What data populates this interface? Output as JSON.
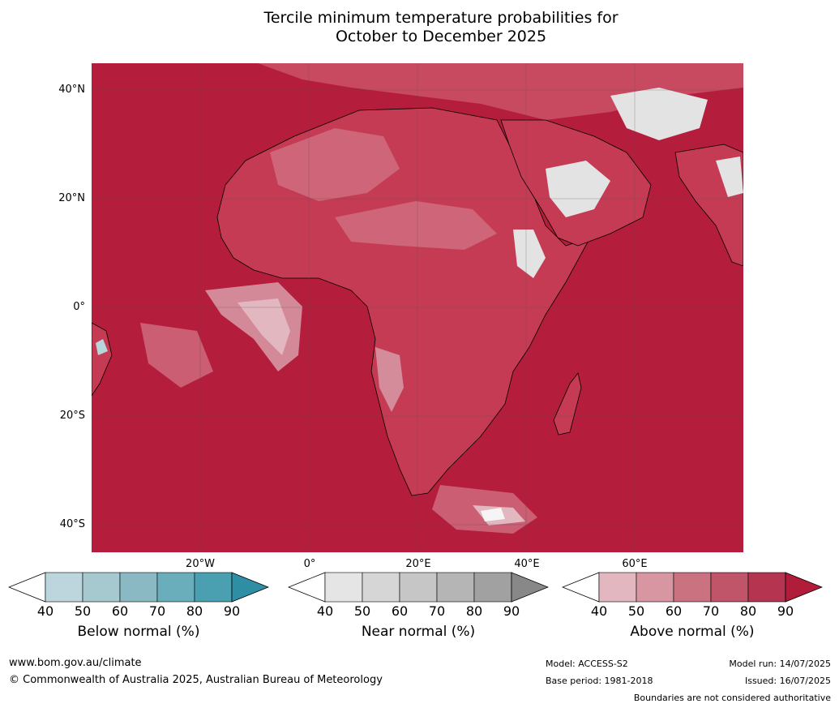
{
  "title": {
    "line1": "Tercile minimum temperature probabilities for",
    "line2": "October to December 2025"
  },
  "map": {
    "lat_labels": [
      "40°N",
      "20°N",
      "0°",
      "20°S",
      "40°S"
    ],
    "lon_labels": [
      "20°W",
      "0°",
      "20°E",
      "40°E",
      "60°E"
    ],
    "colors": {
      "ocean_base": "#b41d3c",
      "land_base": "#c43b53",
      "level_60": "#cf6a7c",
      "level_50": "#d796a2",
      "level_40": "#e2b7bf",
      "near_normal": "#e3e3e3",
      "below_normal": "#b9d5dc"
    }
  },
  "colorbars": [
    {
      "label": "Below normal (%)",
      "ticks": [
        "40",
        "50",
        "60",
        "70",
        "80",
        "90"
      ],
      "colors": [
        "#bdd6dd",
        "#a6c8cf",
        "#8ab9c4",
        "#6baebb",
        "#4a9fb0"
      ],
      "arrow_color": "#2e8fa4"
    },
    {
      "label": "Near normal (%)",
      "ticks": [
        "40",
        "50",
        "60",
        "70",
        "80",
        "90"
      ],
      "colors": [
        "#e5e5e5",
        "#d6d6d6",
        "#c6c6c6",
        "#b5b5b5",
        "#a1a1a1"
      ],
      "arrow_color": "#888888"
    },
    {
      "label": "Above normal (%)",
      "ticks": [
        "40",
        "50",
        "60",
        "70",
        "80",
        "90"
      ],
      "colors": [
        "#e2b7bf",
        "#d796a2",
        "#cb7280",
        "#c05468",
        "#b53450"
      ],
      "arrow_color": "#b11c3a"
    }
  ],
  "footer": {
    "url": "www.bom.gov.au/climate",
    "copyright": "© Commonwealth of Australia 2025, Australian Bureau of Meteorology",
    "model": "Model: ACCESS-S2",
    "base_period": "Base period: 1981-2018",
    "model_run": "Model run: 14/07/2025",
    "issued": "Issued: 16/07/2025",
    "disclaimer": "Boundaries are not considered authoritative"
  }
}
